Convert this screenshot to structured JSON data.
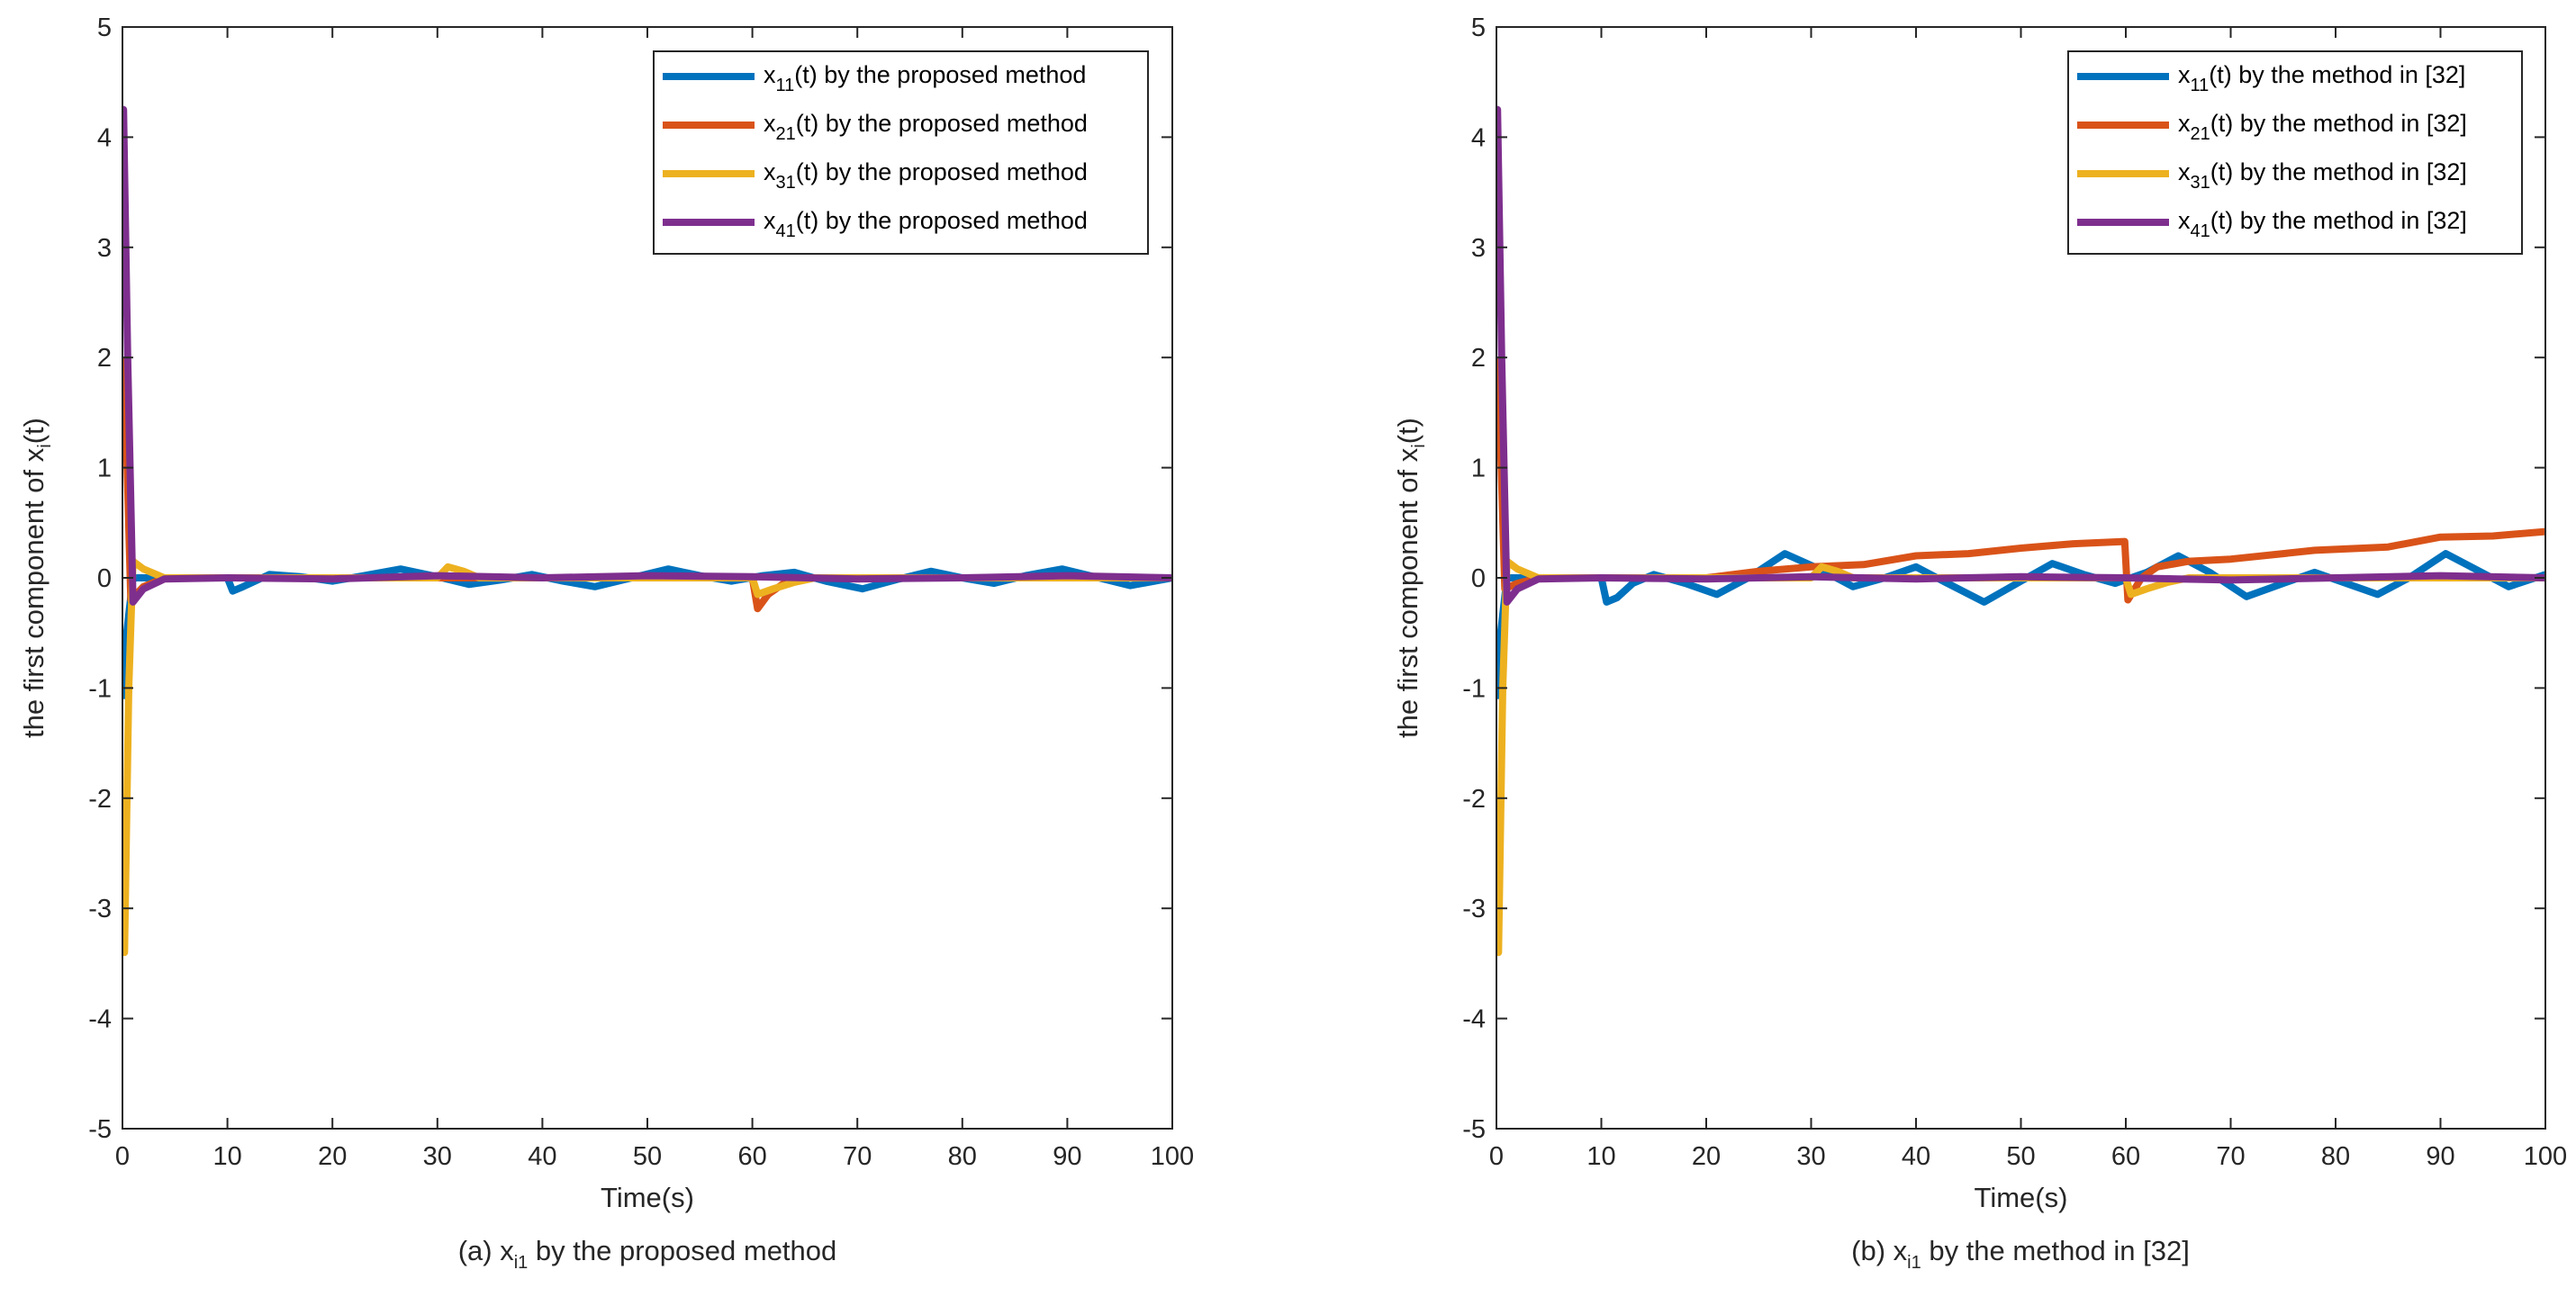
{
  "chart_data": [
    {
      "type": "line",
      "caption": {
        "prefix": "(a) x",
        "sub": "i1",
        "suffix": " by the proposed method"
      },
      "xlabel": "Time(s)",
      "ylabel": {
        "prefix": "the first component of x",
        "sub": "i",
        "suffix": "(t)"
      },
      "xlim": [
        0,
        100
      ],
      "ylim": [
        -5,
        5
      ],
      "xticks": [
        0,
        10,
        20,
        30,
        40,
        50,
        60,
        70,
        80,
        90,
        100
      ],
      "yticks": [
        -5,
        -4,
        -3,
        -2,
        -1,
        0,
        1,
        2,
        3,
        4,
        5
      ],
      "grid": false,
      "legend_position": "top-right",
      "series": [
        {
          "name": {
            "var": "x",
            "sub": "11",
            "rest": "(t) by the proposed method"
          },
          "color": "#0072BD",
          "points": [
            [
              0,
              -1.1
            ],
            [
              0.4,
              -0.5
            ],
            [
              1,
              0
            ],
            [
              10,
              0
            ],
            [
              10.5,
              -0.12
            ],
            [
              11.5,
              -0.08
            ],
            [
              14,
              0.03
            ],
            [
              17,
              0.01
            ],
            [
              20,
              -0.03
            ],
            [
              23,
              0.02
            ],
            [
              26.5,
              0.08
            ],
            [
              30,
              0.01
            ],
            [
              33,
              -0.06
            ],
            [
              36,
              -0.02
            ],
            [
              39,
              0.03
            ],
            [
              42,
              -0.03
            ],
            [
              45,
              -0.08
            ],
            [
              48.5,
              0.0
            ],
            [
              52,
              0.08
            ],
            [
              55,
              0.02
            ],
            [
              58,
              -0.03
            ],
            [
              61,
              0.02
            ],
            [
              64,
              0.05
            ],
            [
              67,
              -0.03
            ],
            [
              70.5,
              -0.1
            ],
            [
              74,
              -0.01
            ],
            [
              77,
              0.06
            ],
            [
              80,
              0.0
            ],
            [
              83,
              -0.05
            ],
            [
              86,
              0.02
            ],
            [
              89.5,
              0.08
            ],
            [
              93,
              0.0
            ],
            [
              96,
              -0.07
            ],
            [
              100,
              0.0
            ]
          ]
        },
        {
          "name": {
            "var": "x",
            "sub": "21",
            "rest": "(t) by the proposed method"
          },
          "color": "#D95319",
          "points": [
            [
              0,
              2.0
            ],
            [
              0.3,
              1.5
            ],
            [
              0.8,
              -0.2
            ],
            [
              2,
              -0.08
            ],
            [
              4,
              0
            ],
            [
              60,
              0
            ],
            [
              60.5,
              -0.28
            ],
            [
              61.5,
              -0.15
            ],
            [
              63,
              -0.05
            ],
            [
              65,
              0
            ],
            [
              100,
              0
            ]
          ]
        },
        {
          "name": {
            "var": "x",
            "sub": "31",
            "rest": "(t) by the proposed method"
          },
          "color": "#EDB120",
          "points": [
            [
              0,
              -3.0
            ],
            [
              0.2,
              -3.4
            ],
            [
              0.6,
              -1.0
            ],
            [
              1,
              0.15
            ],
            [
              2,
              0.08
            ],
            [
              4,
              0
            ],
            [
              30,
              0
            ],
            [
              31,
              0.1
            ],
            [
              32.5,
              0.06
            ],
            [
              34,
              0
            ],
            [
              60,
              0
            ],
            [
              60.5,
              -0.15
            ],
            [
              62,
              -0.1
            ],
            [
              64,
              -0.04
            ],
            [
              66,
              0
            ],
            [
              100,
              0
            ]
          ]
        },
        {
          "name": {
            "var": "x",
            "sub": "41",
            "rest": "(t) by the proposed method"
          },
          "color": "#7E2F8E",
          "points": [
            [
              0,
              4.1
            ],
            [
              0.1,
              4.25
            ],
            [
              0.5,
              2.0
            ],
            [
              1,
              -0.22
            ],
            [
              2,
              -0.1
            ],
            [
              4,
              -0.01
            ],
            [
              10,
              0
            ],
            [
              20,
              -0.01
            ],
            [
              30,
              0.02
            ],
            [
              40,
              0.0
            ],
            [
              50,
              0.02
            ],
            [
              60,
              0.01
            ],
            [
              70,
              -0.01
            ],
            [
              80,
              0.0
            ],
            [
              90,
              0.02
            ],
            [
              100,
              0.0
            ]
          ]
        }
      ]
    },
    {
      "type": "line",
      "caption": {
        "prefix": "(b) x",
        "sub": "i1",
        "suffix": " by the method in [32]"
      },
      "xlabel": "Time(s)",
      "ylabel": {
        "prefix": "the first component of x",
        "sub": "i",
        "suffix": "(t)"
      },
      "xlim": [
        0,
        100
      ],
      "ylim": [
        -5,
        5
      ],
      "xticks": [
        0,
        10,
        20,
        30,
        40,
        50,
        60,
        70,
        80,
        90,
        100
      ],
      "yticks": [
        -5,
        -4,
        -3,
        -2,
        -1,
        0,
        1,
        2,
        3,
        4,
        5
      ],
      "grid": false,
      "legend_position": "top-right",
      "series": [
        {
          "name": {
            "var": "x",
            "sub": "11",
            "rest": "(t) by the method in [32]"
          },
          "color": "#0072BD",
          "points": [
            [
              0,
              -1.1
            ],
            [
              0.4,
              -0.5
            ],
            [
              1,
              0
            ],
            [
              10,
              0
            ],
            [
              10.5,
              -0.22
            ],
            [
              11.5,
              -0.18
            ],
            [
              13,
              -0.05
            ],
            [
              15,
              0.03
            ],
            [
              18,
              -0.05
            ],
            [
              21,
              -0.15
            ],
            [
              24,
              0.0
            ],
            [
              27.5,
              0.22
            ],
            [
              31,
              0.07
            ],
            [
              34,
              -0.08
            ],
            [
              37,
              0.0
            ],
            [
              40,
              0.1
            ],
            [
              43,
              -0.05
            ],
            [
              46.5,
              -0.22
            ],
            [
              50,
              -0.03
            ],
            [
              53,
              0.13
            ],
            [
              56,
              0.03
            ],
            [
              59,
              -0.05
            ],
            [
              62,
              0.05
            ],
            [
              65,
              0.2
            ],
            [
              68,
              0.05
            ],
            [
              71.5,
              -0.17
            ],
            [
              75,
              -0.05
            ],
            [
              78,
              0.05
            ],
            [
              81,
              -0.05
            ],
            [
              84,
              -0.15
            ],
            [
              87,
              0.0
            ],
            [
              90.5,
              0.22
            ],
            [
              93.5,
              0.07
            ],
            [
              96.5,
              -0.08
            ],
            [
              100,
              0.03
            ]
          ]
        },
        {
          "name": {
            "var": "x",
            "sub": "21",
            "rest": "(t) by the method in [32]"
          },
          "color": "#D95319",
          "points": [
            [
              0,
              2.0
            ],
            [
              0.3,
              1.5
            ],
            [
              0.8,
              -0.1
            ],
            [
              2,
              -0.05
            ],
            [
              4,
              0
            ],
            [
              20,
              0
            ],
            [
              25,
              0.06
            ],
            [
              30,
              0.1
            ],
            [
              35,
              0.12
            ],
            [
              40,
              0.2
            ],
            [
              45,
              0.22
            ],
            [
              50,
              0.27
            ],
            [
              55,
              0.31
            ],
            [
              59.9,
              0.33
            ],
            [
              60.2,
              -0.2
            ],
            [
              61.5,
              0.0
            ],
            [
              63,
              0.1
            ],
            [
              66,
              0.15
            ],
            [
              70,
              0.17
            ],
            [
              75,
              0.22
            ],
            [
              78,
              0.25
            ],
            [
              85,
              0.28
            ],
            [
              90,
              0.37
            ],
            [
              95,
              0.38
            ],
            [
              100,
              0.42
            ]
          ]
        },
        {
          "name": {
            "var": "x",
            "sub": "31",
            "rest": "(t) by the method in [32]"
          },
          "color": "#EDB120",
          "points": [
            [
              0,
              -3.0
            ],
            [
              0.2,
              -3.4
            ],
            [
              0.6,
              -1.0
            ],
            [
              1,
              0.15
            ],
            [
              2,
              0.08
            ],
            [
              4,
              0
            ],
            [
              30,
              0
            ],
            [
              31,
              0.1
            ],
            [
              32.5,
              0.06
            ],
            [
              34,
              0
            ],
            [
              60,
              0
            ],
            [
              60.5,
              -0.15
            ],
            [
              62,
              -0.1
            ],
            [
              64,
              -0.04
            ],
            [
              66,
              0
            ],
            [
              100,
              0
            ]
          ]
        },
        {
          "name": {
            "var": "x",
            "sub": "41",
            "rest": "(t) by the method in [32]"
          },
          "color": "#7E2F8E",
          "points": [
            [
              0,
              4.1
            ],
            [
              0.1,
              4.25
            ],
            [
              0.5,
              2.0
            ],
            [
              1,
              -0.22
            ],
            [
              2,
              -0.1
            ],
            [
              4,
              -0.01
            ],
            [
              10,
              0
            ],
            [
              20,
              -0.01
            ],
            [
              30,
              0.01
            ],
            [
              40,
              -0.01
            ],
            [
              50,
              0.01
            ],
            [
              60,
              0.0
            ],
            [
              70,
              -0.02
            ],
            [
              80,
              0.0
            ],
            [
              90,
              0.02
            ],
            [
              100,
              0.0
            ]
          ]
        }
      ]
    }
  ]
}
